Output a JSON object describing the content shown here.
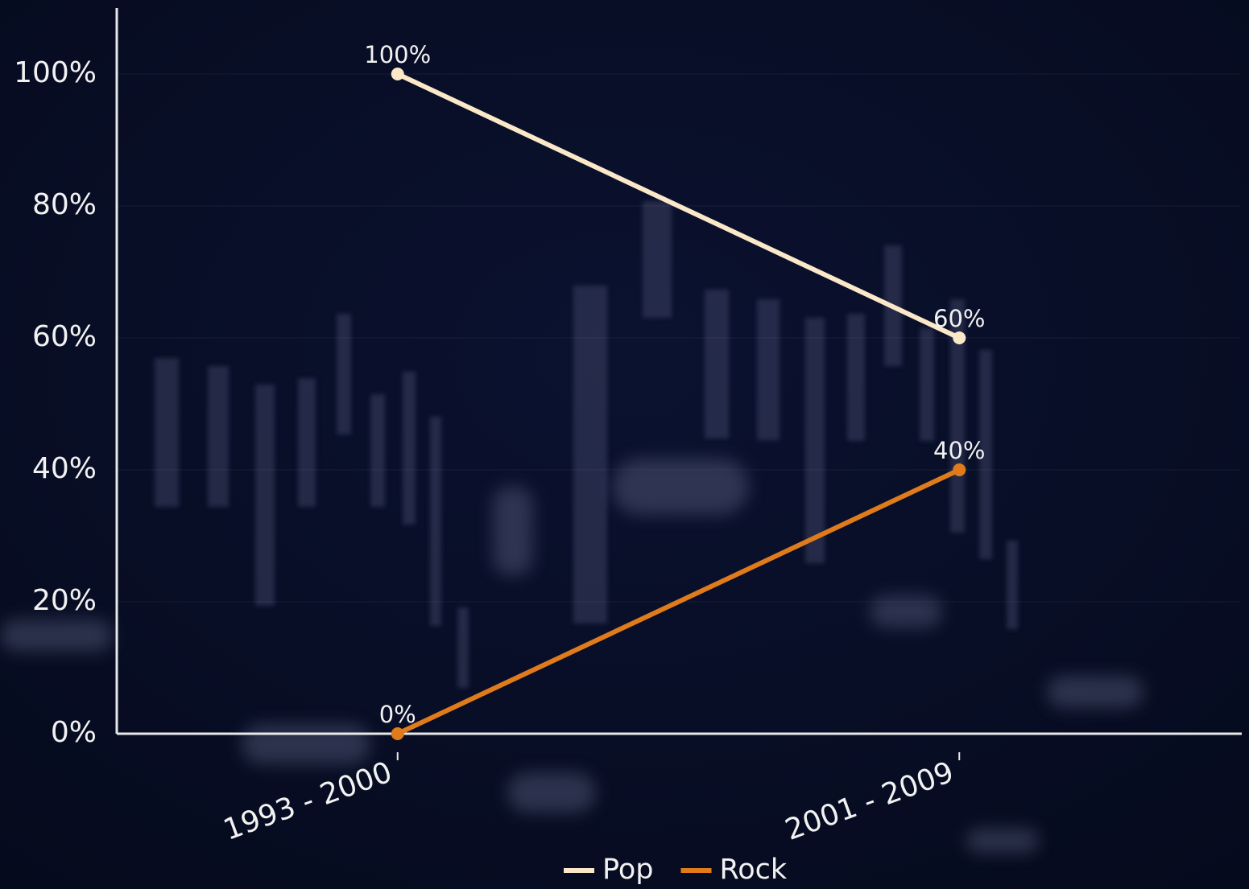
{
  "chart_data": {
    "type": "line",
    "categories": [
      "1993 - 2000",
      "2001 - 2009"
    ],
    "series": [
      {
        "name": "Pop",
        "color": "#fbe8c8",
        "values": [
          100,
          60
        ],
        "value_labels": [
          "100%",
          "60%"
        ]
      },
      {
        "name": "Rock",
        "color": "#e07b1c",
        "values": [
          0,
          40
        ],
        "value_labels": [
          "0%",
          "40%"
        ]
      }
    ],
    "ylim": [
      0,
      110
    ],
    "yticks": [
      {
        "value": 0,
        "label": "0%"
      },
      {
        "value": 20,
        "label": "20%"
      },
      {
        "value": 40,
        "label": "40%"
      },
      {
        "value": 60,
        "label": "60%"
      },
      {
        "value": 80,
        "label": "80%"
      },
      {
        "value": 100,
        "label": "100%"
      }
    ],
    "grid": true,
    "legend": "bottom"
  }
}
